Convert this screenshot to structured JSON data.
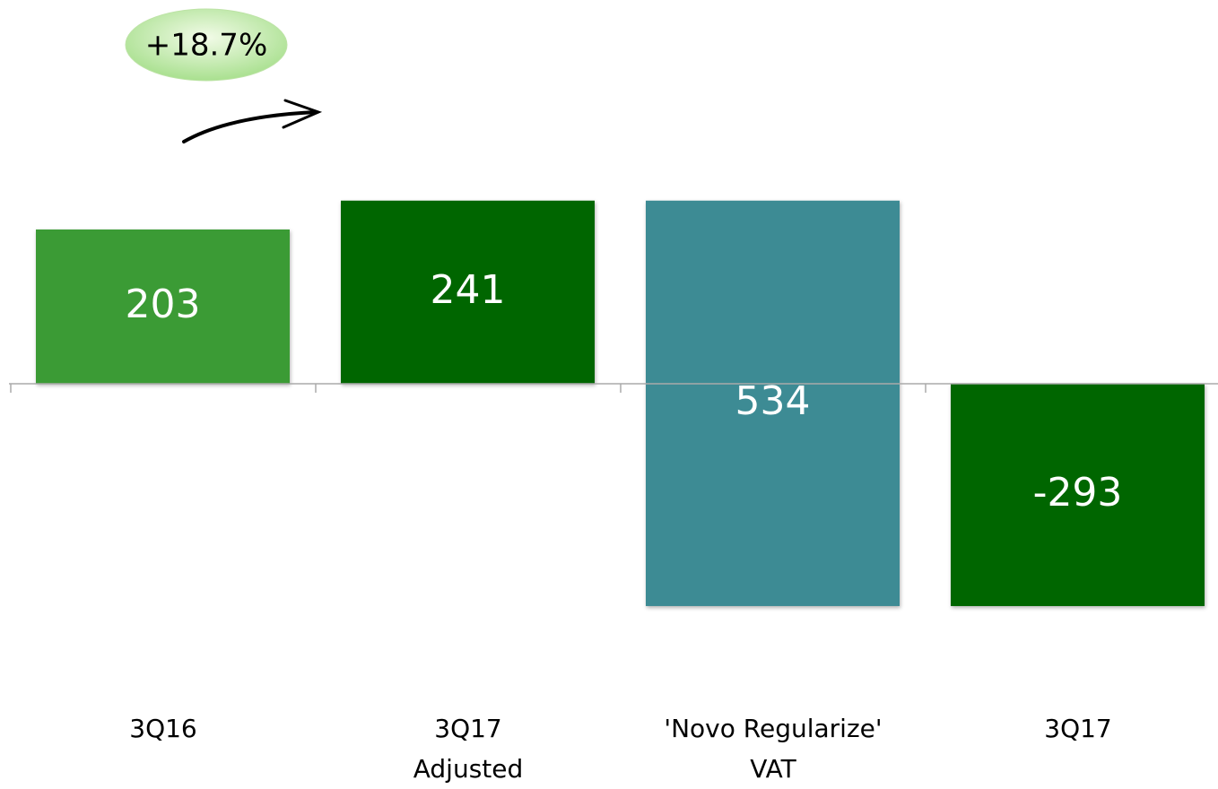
{
  "chart_data": {
    "type": "waterfall",
    "categories": [
      "3Q16",
      "3Q17\nAdjusted",
      "'Novo Regularize'\nVAT",
      "3Q17"
    ],
    "values": [
      203,
      241,
      534,
      -293
    ],
    "measures": [
      "total",
      "total",
      "decrease",
      "total"
    ],
    "colors": [
      "#3a9b35",
      "#006600",
      "#3d8b94",
      "#006600"
    ],
    "ylim": [
      -345,
      458
    ],
    "annotations": [
      {
        "text": "+18.7%"
      }
    ]
  }
}
